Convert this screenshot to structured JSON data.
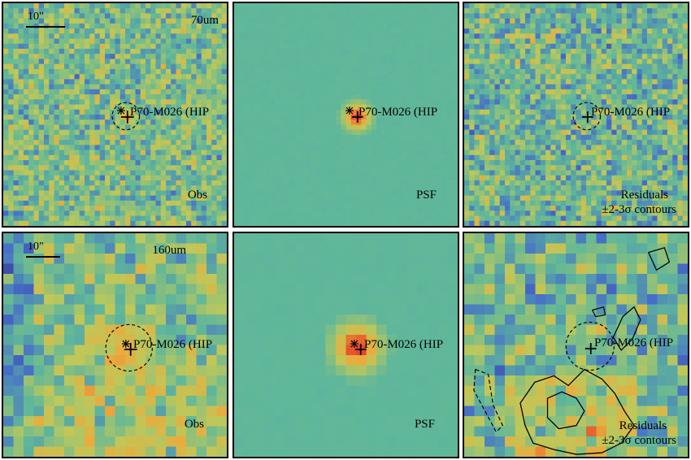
{
  "rows": [
    {
      "band_label": "70um",
      "scale_label": "10\"",
      "source_label": "P70-M026 (HIP",
      "panels": [
        {
          "id": "obs",
          "corner_label": "Obs",
          "corner_label_2": ""
        },
        {
          "id": "psf",
          "corner_label": "PSF",
          "corner_label_2": ""
        },
        {
          "id": "res",
          "corner_label": "Residuals",
          "corner_label_2": "±2-3σ contours"
        }
      ]
    },
    {
      "band_label": "160um",
      "scale_label": "10\"",
      "source_label": "P70-M026 (HIP",
      "panels": [
        {
          "id": "obs",
          "corner_label": "Obs",
          "corner_label_2": ""
        },
        {
          "id": "psf",
          "corner_label": "PSF",
          "corner_label_2": ""
        },
        {
          "id": "res",
          "corner_label": "Residuals",
          "corner_label_2": "±2-3σ contours"
        }
      ]
    }
  ],
  "colors": {
    "background": "#5fb79a",
    "map_low": "#3a2b8c",
    "map_mid": "#5fb79a",
    "map_high": "#e5352a"
  },
  "icons": [
    "asterisk-marker-icon",
    "cross-marker-icon",
    "dashed-circle-aperture"
  ]
}
